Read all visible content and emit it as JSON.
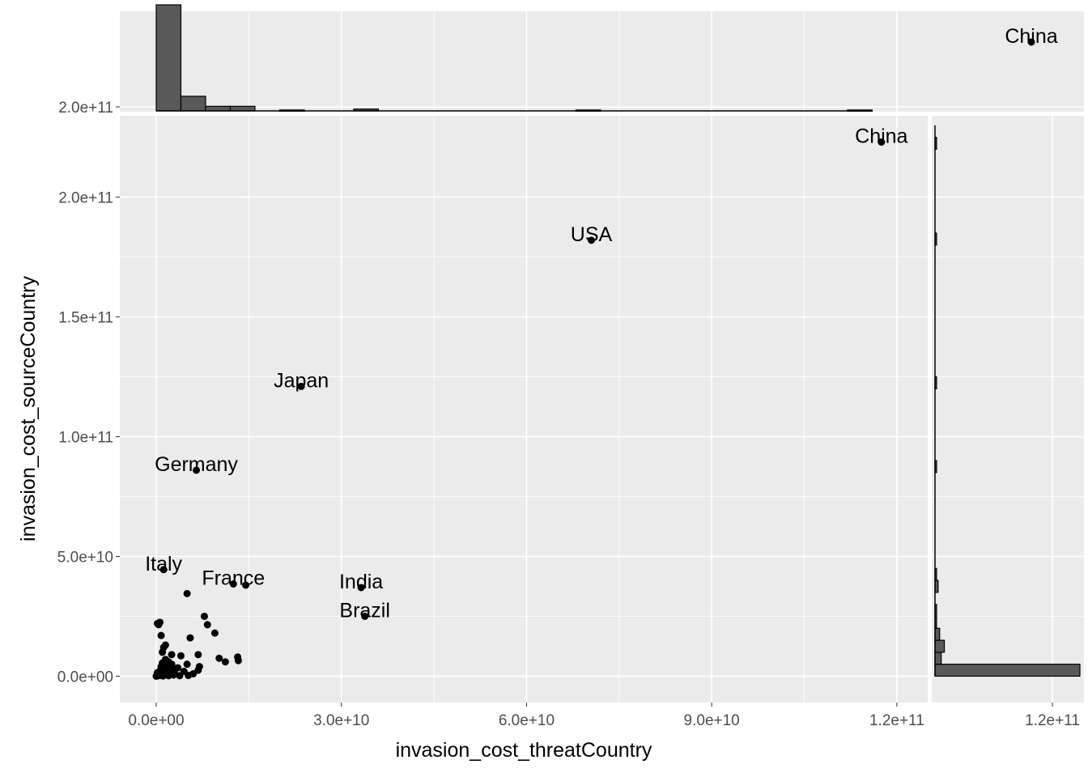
{
  "chart_data": {
    "type": "scatter",
    "title": "",
    "xlabel": "invasion_cost_threatCountry",
    "ylabel": "invasion_cost_sourceCountry",
    "xlim": [
      -5900000000,
      125000000000
    ],
    "ylim": [
      -11000000000,
      234000000000
    ],
    "x_ticks": [
      0,
      30000000000,
      60000000000,
      90000000000,
      120000000000
    ],
    "x_tick_labels": [
      "0.0e+00",
      "3.0e+10",
      "6.0e+10",
      "9.0e+10",
      "1.2e+11"
    ],
    "y_ticks": [
      0,
      50000000000,
      100000000000,
      150000000000,
      200000000000
    ],
    "y_tick_labels": [
      "0.0e+00",
      "5.0e+10",
      "1.0e+11",
      "1.5e+11",
      "2.0e+11"
    ],
    "grid": true,
    "background": "#ebebeb",
    "point_color": "#000000",
    "bar_fill": "#595959",
    "labeled_points": [
      {
        "label": "China",
        "x": 117500000000,
        "y": 223000000000
      },
      {
        "label": "USA",
        "x": 70500000000,
        "y": 182000000000
      },
      {
        "label": "Japan",
        "x": 23500000000,
        "y": 121000000000
      },
      {
        "label": "Germany",
        "x": 6500000000,
        "y": 86000000000
      },
      {
        "label": "Italy",
        "x": 1200000000,
        "y": 44500000000
      },
      {
        "label": "France",
        "x": 12500000000,
        "y": 38500000000
      },
      {
        "label": "India",
        "x": 33200000000,
        "y": 37000000000
      },
      {
        "label": "Brazil",
        "x": 33800000000,
        "y": 25000000000
      }
    ],
    "other_points": [
      [
        14500000000,
        38000000000
      ],
      [
        5000000000,
        34500000000
      ],
      [
        7800000000,
        25000000000
      ],
      [
        8300000000,
        21500000000
      ],
      [
        9500000000,
        18000000000
      ],
      [
        5500000000,
        16000000000
      ],
      [
        200000000,
        22000000000
      ],
      [
        600000000,
        22500000000
      ],
      [
        400000000,
        21500000000
      ],
      [
        800000000,
        17000000000
      ],
      [
        1200000000,
        12000000000
      ],
      [
        1500000000,
        13000000000
      ],
      [
        1000000000,
        10000000000
      ],
      [
        2500000000,
        9000000000
      ],
      [
        4000000000,
        8500000000
      ],
      [
        6800000000,
        9000000000
      ],
      [
        10200000000,
        7500000000
      ],
      [
        11200000000,
        6000000000
      ],
      [
        13200000000,
        8000000000
      ],
      [
        13300000000,
        6500000000
      ],
      [
        5000000000,
        5000000000
      ],
      [
        7000000000,
        4000000000
      ],
      [
        6800000000,
        2500000000
      ],
      [
        6000000000,
        1000000000
      ],
      [
        4500000000,
        2000000000
      ],
      [
        3500000000,
        3500000000
      ],
      [
        2500000000,
        5000000000
      ],
      [
        2000000000,
        6000000000
      ],
      [
        1500000000,
        7000000000
      ],
      [
        1000000000,
        5500000000
      ],
      [
        800000000,
        4000000000
      ],
      [
        1500000000,
        3000000000
      ],
      [
        2200000000,
        2000000000
      ],
      [
        3000000000,
        1000000000
      ],
      [
        500000000,
        2000000000
      ],
      [
        300000000,
        1000000000
      ],
      [
        100000000,
        500000000
      ],
      [
        700000000,
        300000000
      ],
      [
        1200000000,
        800000000
      ],
      [
        1800000000,
        1500000000
      ],
      [
        2600000000,
        2800000000
      ],
      [
        200000000,
        1500000000
      ],
      [
        0,
        0
      ],
      [
        300000000,
        200000000
      ],
      [
        1100000000,
        100000000
      ],
      [
        2000000000,
        200000000
      ],
      [
        2800000000,
        500000000
      ],
      [
        3800000000,
        200000000
      ],
      [
        5200000000,
        300000000
      ],
      [
        1600000000,
        4200000000
      ]
    ],
    "top_histogram": {
      "bin_width": 4000000000,
      "bars": [
        {
          "x_start": 0,
          "count": 116
        },
        {
          "x_start": 4000000000,
          "count": 16
        },
        {
          "x_start": 8000000000,
          "count": 5
        },
        {
          "x_start": 12000000000,
          "count": 5
        },
        {
          "x_start": 20000000000,
          "count": 1
        },
        {
          "x_start": 32000000000,
          "count": 2
        },
        {
          "x_start": 68000000000,
          "count": 1
        },
        {
          "x_start": 112000000000,
          "count": 1
        }
      ],
      "ytick_label": "2.0e+11",
      "point_label": "China"
    },
    "right_histogram": {
      "bin_width": 5000000000,
      "bars": [
        {
          "y_start": 0,
          "count": 93
        },
        {
          "y_start": 5000000000,
          "count": 4
        },
        {
          "y_start": 10000000000,
          "count": 6
        },
        {
          "y_start": 15000000000,
          "count": 3
        },
        {
          "y_start": 20000000000,
          "count": 1
        },
        {
          "y_start": 25000000000,
          "count": 1
        },
        {
          "y_start": 35000000000,
          "count": 2
        },
        {
          "y_start": 40000000000,
          "count": 1
        },
        {
          "y_start": 85000000000,
          "count": 1
        },
        {
          "y_start": 120000000000,
          "count": 1
        },
        {
          "y_start": 180000000000,
          "count": 1
        },
        {
          "y_start": 220000000000,
          "count": 1
        }
      ],
      "xtick_label": "1.2e+11"
    }
  }
}
